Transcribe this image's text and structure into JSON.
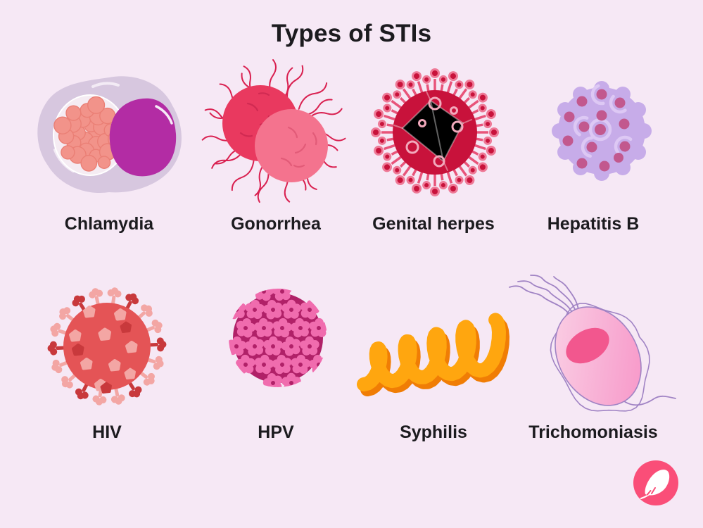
{
  "title": "Types of STIs",
  "items": [
    {
      "id": "chlamydia",
      "label": "Chlamydia",
      "accent": "#B32CA4"
    },
    {
      "id": "gonorrhea",
      "label": "Gonorrhea",
      "accent": "#E9395F"
    },
    {
      "id": "genital-herpes",
      "label": "Genital herpes",
      "accent": "#C8123B"
    },
    {
      "id": "hepatitis-b",
      "label": "Hepatitis B",
      "accent": "#C7ACE9"
    },
    {
      "id": "hiv",
      "label": "HIV",
      "accent": "#E45456"
    },
    {
      "id": "hpv",
      "label": "HPV",
      "accent": "#B02168"
    },
    {
      "id": "syphilis",
      "label": "Syphilis",
      "accent": "#FFA60F"
    },
    {
      "id": "trichomoniasis",
      "label": "Trichomoniasis",
      "accent": "#F792C6"
    }
  ],
  "logo": {
    "name": "flo-feather-logo",
    "background": "#FA4E78",
    "glyph": "feather"
  },
  "palette": {
    "background": "#F6E8F5",
    "text": "#1C1B1F",
    "chlamydia_cell": "#D7C7DF",
    "chlamydia_inclusion": "#F2938A",
    "chlamydia_nucleus": "#B32CA4",
    "gonorrhea_dark": "#E9395F",
    "gonorrhea_light": "#F4738E",
    "gonorrhea_pili": "#D92050",
    "herpes_body": "#C8123B",
    "herpes_spike": "#E8547A",
    "hepatitis_body": "#C7ACE9",
    "hepatitis_dots": "#C2588E",
    "hiv_body": "#E45456",
    "hiv_spike_light": "#F3A6A4",
    "hiv_spike_dark": "#C8393C",
    "hpv_body": "#B02168",
    "hpv_capsomere": "#F06CAE",
    "syphilis_main": "#FFA60F",
    "syphilis_shadow": "#F07D05",
    "trich_body": "#F792C6",
    "trich_nucleus": "#F2578E",
    "trich_outline": "#A083C4"
  }
}
